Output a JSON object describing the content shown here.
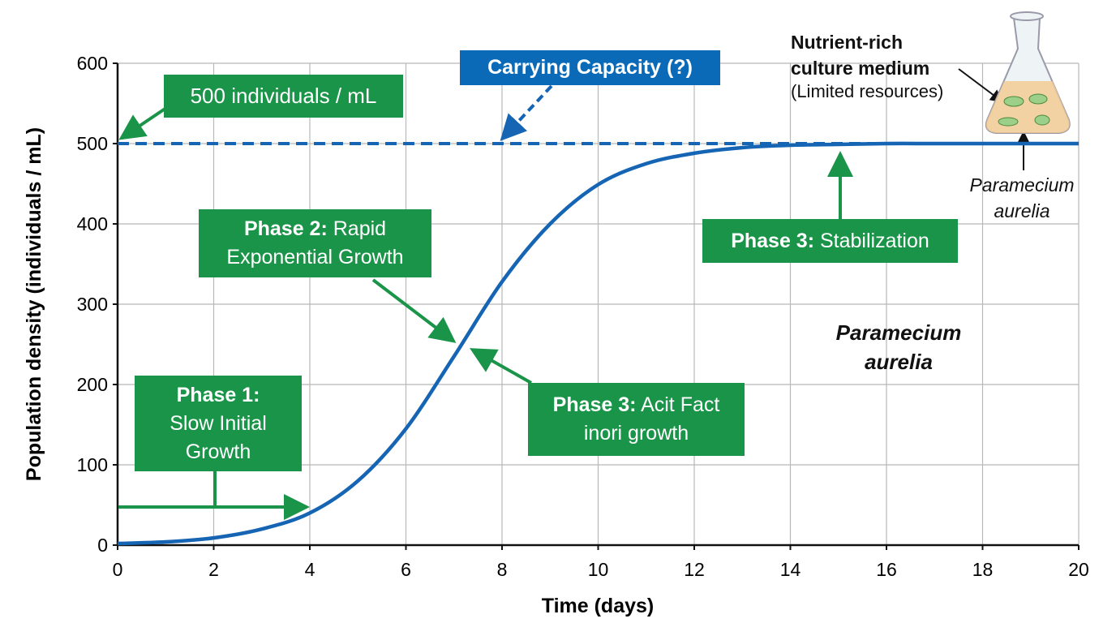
{
  "chart_data": {
    "type": "line",
    "x_label": "Time (days)",
    "y_label": "Population density (individuals / mL)",
    "x": [
      0,
      1,
      2,
      3,
      4,
      5,
      6,
      7,
      8,
      9,
      10,
      11,
      12,
      13,
      14,
      15,
      16,
      17,
      18,
      19,
      20
    ],
    "series": [
      {
        "name": "Paramecium aurelia",
        "color": "#1565b4",
        "values": [
          2,
          4,
          9,
          20,
          40,
          80,
          145,
          235,
          328,
          400,
          449,
          475,
          488,
          495,
          498,
          499,
          500,
          500,
          500,
          500,
          500
        ]
      }
    ],
    "carrying_capacity": 500,
    "xlim": [
      0,
      20
    ],
    "xticks": [
      0,
      2,
      4,
      6,
      8,
      10,
      12,
      14,
      16,
      18,
      20
    ],
    "ylim": [
      0,
      600
    ],
    "yticks": [
      0,
      100,
      200,
      300,
      400,
      500,
      600
    ],
    "grid": true,
    "annotations": {
      "capacity_value": "500 individuals / mL",
      "capacity_label": "Carrying Capacity (?)",
      "phase1": {
        "bold": "Phase 1:",
        "text": "Slow Initial Growth"
      },
      "phase2": {
        "bold": "Phase 2:",
        "text": "Rapid Exponential Growth"
      },
      "phase3a": {
        "bold": "Phase 3:",
        "text": "Acit Fact inori growth"
      },
      "phase3": {
        "bold": "Phase 3:",
        "text": "Stabilization"
      },
      "species": "Paramecium aurelia",
      "medium": "Nutrient-rich culture medium",
      "resources": "(Limited resources)",
      "flask_species": "Paramecium aurelia"
    }
  }
}
